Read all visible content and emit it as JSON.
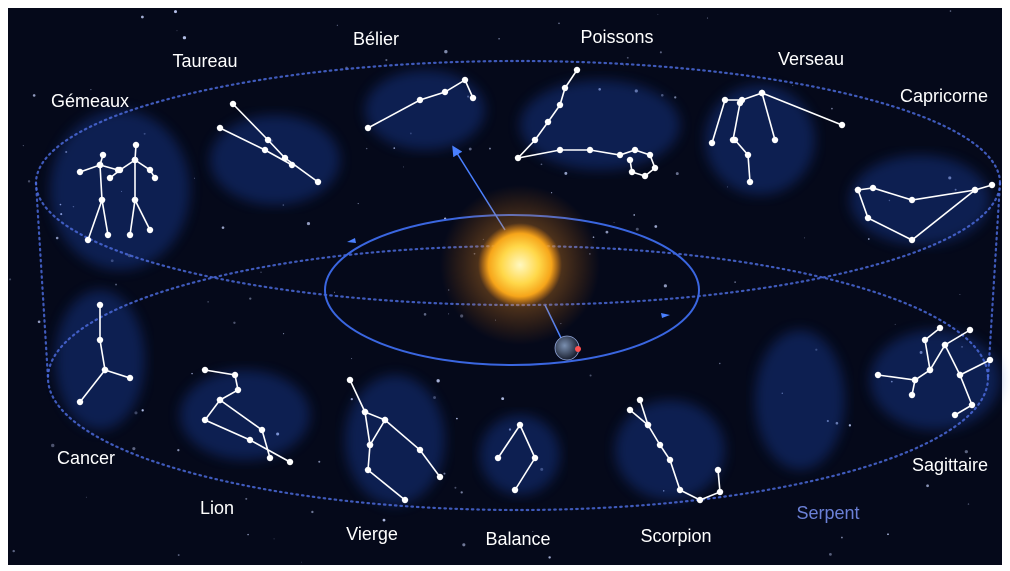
{
  "constellations": {
    "gemeaux": "Gémeaux",
    "taureau": "Taureau",
    "belier": "Bélier",
    "poissons": "Poissons",
    "verseau": "Verseau",
    "capricorne": "Capricorne",
    "cancer": "Cancer",
    "lion": "Lion",
    "vierge": "Vierge",
    "balance": "Balance",
    "scorpion": "Scorpion",
    "serpent": "Serpent",
    "sagittaire": "Sagittaire"
  }
}
